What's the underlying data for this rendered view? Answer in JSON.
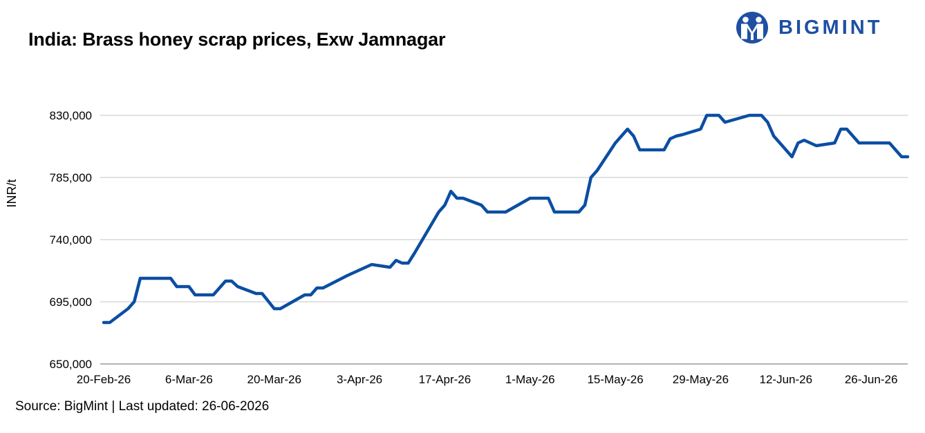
{
  "header": {
    "title": "India: Brass honey scrap prices, Exw Jamnagar",
    "brand": "BIGMINT",
    "brand_color": "#1e4fa3"
  },
  "footer": {
    "source": "Source: BigMint | Last updated: 26-06-2026"
  },
  "chart_data": {
    "type": "line",
    "title": "India: Brass honey scrap prices, Exw Jamnagar",
    "xlabel": "",
    "ylabel": "INR/t",
    "ylim": [
      650000,
      830000
    ],
    "yticks": [
      650000,
      695000,
      740000,
      785000,
      830000
    ],
    "ytick_labels": [
      "650,000",
      "695,000",
      "740,000",
      "785,000",
      "830,000"
    ],
    "xticks": [
      {
        "day": 0,
        "label": "20-Feb-26"
      },
      {
        "day": 14,
        "label": "6-Mar-26"
      },
      {
        "day": 28,
        "label": "20-Mar-26"
      },
      {
        "day": 42,
        "label": "3-Apr-26"
      },
      {
        "day": 56,
        "label": "17-Apr-26"
      },
      {
        "day": 70,
        "label": "1-May-26"
      },
      {
        "day": 84,
        "label": "15-May-26"
      },
      {
        "day": 98,
        "label": "29-May-26"
      },
      {
        "day": 112,
        "label": "12-Jun-26"
      },
      {
        "day": 126,
        "label": "26-Jun-26"
      }
    ],
    "grid": true,
    "line_color": "#0b4ea2",
    "series": [
      {
        "values": [
          [
            0,
            680000
          ],
          [
            1,
            680000
          ],
          [
            4,
            690000
          ],
          [
            5,
            695000
          ],
          [
            6,
            712000
          ],
          [
            7,
            712000
          ],
          [
            10,
            712000
          ],
          [
            11,
            712000
          ],
          [
            12,
            706000
          ],
          [
            14,
            706000
          ],
          [
            15,
            700000
          ],
          [
            18,
            700000
          ],
          [
            20,
            710000
          ],
          [
            21,
            710000
          ],
          [
            22,
            706000
          ],
          [
            25,
            701000
          ],
          [
            26,
            701000
          ],
          [
            28,
            690000
          ],
          [
            29,
            690000
          ],
          [
            33,
            700000
          ],
          [
            34,
            700000
          ],
          [
            35,
            705000
          ],
          [
            36,
            705000
          ],
          [
            40,
            714000
          ],
          [
            44,
            722000
          ],
          [
            47,
            720000
          ],
          [
            48,
            725000
          ],
          [
            49,
            723000
          ],
          [
            50,
            723000
          ],
          [
            51,
            730000
          ],
          [
            55,
            760000
          ],
          [
            56,
            765000
          ],
          [
            57,
            775000
          ],
          [
            58,
            770000
          ],
          [
            59,
            770000
          ],
          [
            62,
            765000
          ],
          [
            63,
            760000
          ],
          [
            66,
            760000
          ],
          [
            70,
            770000
          ],
          [
            73,
            770000
          ],
          [
            74,
            760000
          ],
          [
            78,
            760000
          ],
          [
            79,
            765000
          ],
          [
            80,
            785000
          ],
          [
            81,
            790000
          ],
          [
            84,
            810000
          ],
          [
            86,
            820000
          ],
          [
            87,
            815000
          ],
          [
            88,
            805000
          ],
          [
            92,
            805000
          ],
          [
            93,
            813000
          ],
          [
            94,
            815000
          ],
          [
            95,
            816000
          ],
          [
            98,
            820000
          ],
          [
            99,
            830000
          ],
          [
            101,
            830000
          ],
          [
            102,
            825000
          ],
          [
            106,
            830000
          ],
          [
            108,
            830000
          ],
          [
            109,
            825000
          ],
          [
            110,
            815000
          ],
          [
            113,
            800000
          ],
          [
            114,
            810000
          ],
          [
            115,
            812000
          ],
          [
            117,
            808000
          ],
          [
            120,
            810000
          ],
          [
            121,
            820000
          ],
          [
            122,
            820000
          ],
          [
            124,
            810000
          ],
          [
            128,
            810000
          ],
          [
            129,
            810000
          ],
          [
            131,
            800000
          ],
          [
            132,
            800000
          ]
        ]
      }
    ]
  }
}
